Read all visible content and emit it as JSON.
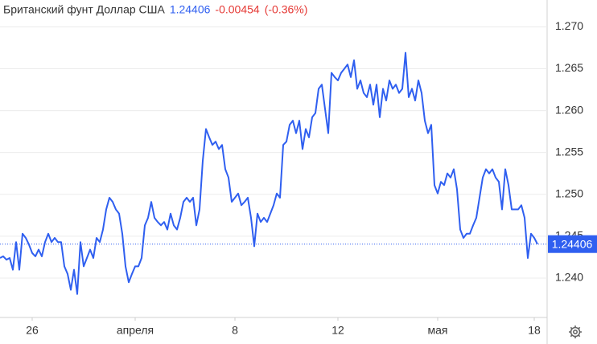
{
  "chart_data": {
    "type": "line",
    "title": "Британский фунт Доллар США",
    "change": "-0.00454",
    "change_pct": "(-0.36%)",
    "last_price": {
      "value": 1.24406,
      "label": "1.24406"
    },
    "series": [
      {
        "color": "#2f5ff0",
        "values": [
          1.2424,
          1.2426,
          1.2422,
          1.2424,
          1.241,
          1.2443,
          1.241,
          1.2453,
          1.2448,
          1.244,
          1.243,
          1.2426,
          1.2434,
          1.2426,
          1.2443,
          1.2453,
          1.2443,
          1.2448,
          1.2443,
          1.2443,
          1.2414,
          1.2405,
          1.2386,
          1.241,
          1.2381,
          1.2443,
          1.2414,
          1.2424,
          1.2434,
          1.2424,
          1.2448,
          1.2443,
          1.2458,
          1.2482,
          1.2496,
          1.2491,
          1.2482,
          1.2477,
          1.2453,
          1.2414,
          1.2395,
          1.2405,
          1.2414,
          1.2414,
          1.2424,
          1.2463,
          1.2472,
          1.2491,
          1.2472,
          1.2467,
          1.2463,
          1.2467,
          1.2458,
          1.2477,
          1.2463,
          1.2458,
          1.2472,
          1.2491,
          1.2496,
          1.2491,
          1.2496,
          1.2463,
          1.2482,
          1.254,
          1.2578,
          1.2568,
          1.2559,
          1.2563,
          1.2554,
          1.2559,
          1.253,
          1.252,
          1.2491,
          1.2496,
          1.2501,
          1.2487,
          1.2491,
          1.2496,
          1.2472,
          1.2438,
          1.2477,
          1.2467,
          1.2472,
          1.2467,
          1.2477,
          1.2487,
          1.2501,
          1.2496,
          1.2559,
          1.2563,
          1.2583,
          1.2588,
          1.2573,
          1.2588,
          1.2554,
          1.2578,
          1.2568,
          1.2592,
          1.2597,
          1.2626,
          1.2631,
          1.2602,
          1.2573,
          1.2645,
          1.264,
          1.2636,
          1.2645,
          1.265,
          1.2655,
          1.264,
          1.266,
          1.2626,
          1.2636,
          1.2621,
          1.2616,
          1.2631,
          1.2607,
          1.2631,
          1.2592,
          1.2626,
          1.2612,
          1.2636,
          1.2626,
          1.2631,
          1.2621,
          1.2626,
          1.2669,
          1.2616,
          1.2626,
          1.2612,
          1.2636,
          1.2621,
          1.2588,
          1.2573,
          1.2583,
          1.2511,
          1.2501,
          1.2515,
          1.2511,
          1.2525,
          1.252,
          1.253,
          1.2506,
          1.2458,
          1.2448,
          1.2453,
          1.2453,
          1.2463,
          1.2472,
          1.2496,
          1.252,
          1.253,
          1.2525,
          1.253,
          1.252,
          1.2515,
          1.2482,
          1.253,
          1.2511,
          1.2482,
          1.2482,
          1.2482,
          1.2487,
          1.2472,
          1.2424,
          1.2453,
          1.2448,
          1.24406
        ]
      }
    ],
    "xlim": [
      0,
      170
    ],
    "xticks": [
      {
        "value": 10,
        "label": "26"
      },
      {
        "value": 42,
        "label": "апреля"
      },
      {
        "value": 73,
        "label": "8"
      },
      {
        "value": 105,
        "label": "12"
      },
      {
        "value": 136,
        "label": "мая"
      },
      {
        "value": 166,
        "label": "18"
      }
    ],
    "ylim": [
      1.2353,
      1.2732
    ],
    "yticks": [
      {
        "value": 1.24,
        "label": "1.240"
      },
      {
        "value": 1.245,
        "label": "1.245"
      },
      {
        "value": 1.25,
        "label": "1.250"
      },
      {
        "value": 1.255,
        "label": "1.255"
      },
      {
        "value": 1.26,
        "label": "1.260"
      },
      {
        "value": 1.265,
        "label": "1.265"
      },
      {
        "value": 1.27,
        "label": "1.270"
      }
    ],
    "grid": true
  }
}
